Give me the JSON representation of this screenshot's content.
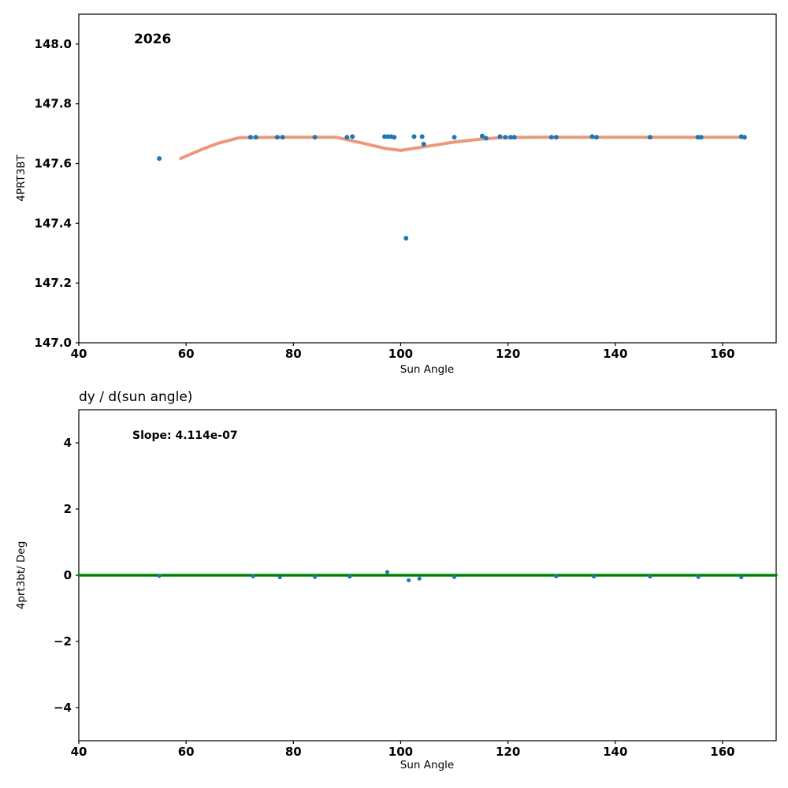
{
  "figure": {
    "background": "#ffffff",
    "frame_color": "#000000",
    "tick_color": "#000000"
  },
  "chart_data": [
    {
      "type": "scatter",
      "annotation": "2026",
      "xlabel": "Sun Angle",
      "ylabel": "4PRT3BT",
      "xlim": [
        40,
        170
      ],
      "ylim": [
        147.0,
        148.1
      ],
      "grid": false,
      "xticks": [
        40,
        60,
        80,
        100,
        120,
        140,
        160
      ],
      "xticklabels": [
        "40",
        "60",
        "80",
        "100",
        "120",
        "140",
        "160"
      ],
      "yticks": [
        147.0,
        147.2,
        147.4,
        147.6,
        147.8,
        148.0
      ],
      "yticklabels": [
        "147.0",
        "147.2",
        "147.4",
        "147.6",
        "147.8",
        "148.0"
      ],
      "scatter": {
        "name": "measurement-points",
        "color": "#1f77b4",
        "radius": 3,
        "points": [
          [
            55,
            147.617
          ],
          [
            72,
            147.688
          ],
          [
            73,
            147.688
          ],
          [
            77,
            147.688
          ],
          [
            78,
            147.688
          ],
          [
            84,
            147.688
          ],
          [
            90,
            147.688
          ],
          [
            91,
            147.69
          ],
          [
            97,
            147.69
          ],
          [
            97.6,
            147.69
          ],
          [
            98.2,
            147.69
          ],
          [
            98.8,
            147.688
          ],
          [
            101,
            147.35
          ],
          [
            102.5,
            147.69
          ],
          [
            104,
            147.69
          ],
          [
            104.3,
            147.665
          ],
          [
            110,
            147.688
          ],
          [
            115.2,
            147.692
          ],
          [
            115.9,
            147.685
          ],
          [
            118.5,
            147.69
          ],
          [
            119.5,
            147.688
          ],
          [
            120.5,
            147.688
          ],
          [
            121.2,
            147.688
          ],
          [
            128.1,
            147.688
          ],
          [
            129,
            147.688
          ],
          [
            135.7,
            147.69
          ],
          [
            136.5,
            147.688
          ],
          [
            146.5,
            147.688
          ],
          [
            155.4,
            147.688
          ],
          [
            156,
            147.688
          ],
          [
            163.5,
            147.69
          ],
          [
            164.1,
            147.688
          ]
        ]
      },
      "lines": [
        {
          "name": "trend-line",
          "color": "#e88e6c",
          "width": 4,
          "opacity": 0.9,
          "points": [
            [
              59,
              147.617
            ],
            [
              63,
              147.648
            ],
            [
              66,
              147.668
            ],
            [
              70,
              147.687
            ],
            [
              80,
              147.688
            ],
            [
              88,
              147.688
            ],
            [
              93,
              147.668
            ],
            [
              97,
              147.651
            ],
            [
              100,
              147.644
            ],
            [
              104,
              147.655
            ],
            [
              110,
              147.672
            ],
            [
              115,
              147.682
            ],
            [
              119,
              147.687
            ],
            [
              125,
              147.688
            ],
            [
              164,
              147.688
            ]
          ]
        }
      ]
    },
    {
      "type": "scatter",
      "title": "dy / d(sun angle)",
      "annotation": "Slope: 4.114e-07",
      "xlabel": "Sun Angle",
      "ylabel": "4prt3bt/ Deg",
      "xlim": [
        40,
        170
      ],
      "ylim": [
        -5,
        5
      ],
      "grid": false,
      "xticks": [
        40,
        60,
        80,
        100,
        120,
        140,
        160
      ],
      "xticklabels": [
        "40",
        "60",
        "80",
        "100",
        "120",
        "140",
        "160"
      ],
      "yticks": [
        -4,
        -2,
        0,
        2,
        4
      ],
      "yticklabels": [
        "−4",
        "−2",
        "0",
        "2",
        "4"
      ],
      "scatter": {
        "name": "derivative-points",
        "color": "#1f77b4",
        "radius": 2.6,
        "points": [
          [
            55,
            -0.02
          ],
          [
            72.5,
            -0.03
          ],
          [
            77.5,
            -0.06
          ],
          [
            84,
            -0.05
          ],
          [
            90.5,
            -0.04
          ],
          [
            97.5,
            0.1
          ],
          [
            101.5,
            -0.15
          ],
          [
            103.5,
            -0.1
          ],
          [
            110,
            -0.05
          ],
          [
            129,
            -0.03
          ],
          [
            136,
            -0.04
          ],
          [
            146.5,
            -0.04
          ],
          [
            155.5,
            -0.05
          ],
          [
            163.5,
            -0.06
          ]
        ]
      },
      "lines": [
        {
          "name": "zero-slope-line",
          "color": "#008000",
          "width": 3.5,
          "opacity": 1,
          "points": [
            [
              40,
              0
            ],
            [
              170,
              0
            ]
          ]
        }
      ]
    }
  ]
}
